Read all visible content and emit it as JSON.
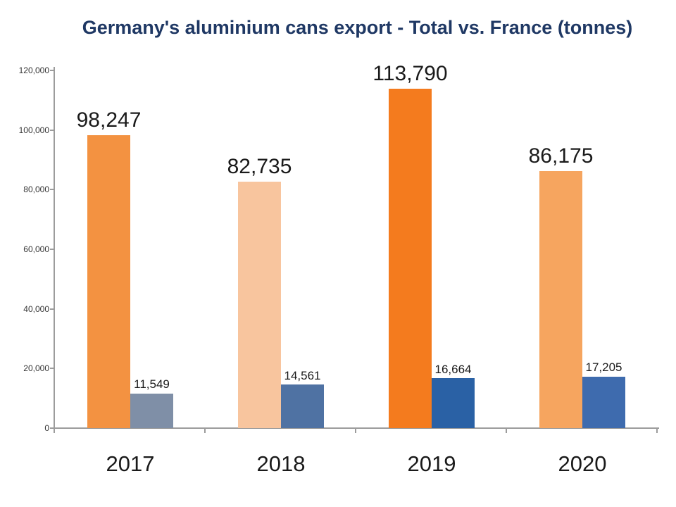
{
  "chart_data": {
    "type": "bar",
    "title": "Germany's aluminium cans export - Total vs. France (tonnes)",
    "title_color": "#1F3864",
    "categories": [
      "2017",
      "2018",
      "2019",
      "2020"
    ],
    "series": [
      {
        "name": "Total",
        "values": [
          98247,
          82735,
          113790,
          86175
        ],
        "labels": [
          "98,247",
          "82,735",
          "113,790",
          "86,175"
        ],
        "colors": [
          "#F39241",
          "#F8C59E",
          "#F47B1E",
          "#F6A55F"
        ]
      },
      {
        "name": "France",
        "values": [
          11549,
          14561,
          16664,
          17205
        ],
        "labels": [
          "11,549",
          "14,561",
          "16,664",
          "17,205"
        ],
        "colors": [
          "#7F8FA7",
          "#4F72A3",
          "#2A61A5",
          "#3E6BAE"
        ]
      }
    ],
    "xlabel": "",
    "ylabel": "",
    "ylim": [
      0,
      120000
    ],
    "yticks": {
      "values": [
        0,
        20000,
        40000,
        60000,
        80000,
        100000,
        120000
      ],
      "labels": [
        "0",
        "20,000",
        "40,000",
        "60,000",
        "80,000",
        "100,000",
        "120,000"
      ]
    },
    "grid": false,
    "legend": "none",
    "axis_color": "#9C9C9C",
    "label_color": "#1A1A1A"
  }
}
